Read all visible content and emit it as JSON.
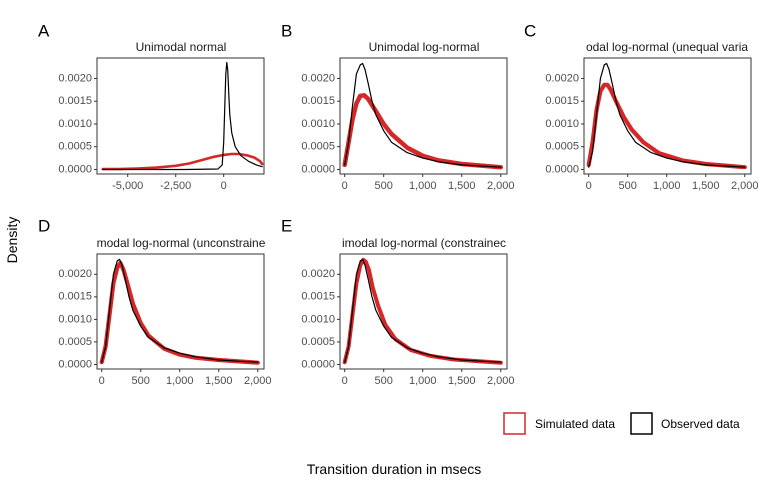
{
  "figure": {
    "y_axis_title": "Density",
    "x_axis_title": "Transition duration in msecs"
  },
  "legend": {
    "items": [
      {
        "label": "Simulated data",
        "color": "#d62728"
      },
      {
        "label": "Observed data",
        "color": "#000000"
      }
    ]
  },
  "chart_data": [
    {
      "type": "line",
      "panel": "A",
      "title": "Unimodal normal",
      "xlim": [
        -6600,
        2100
      ],
      "ylim": [
        -0.0001,
        0.00245
      ],
      "x_ticks": [
        -5000,
        -2500,
        0
      ],
      "x_tick_labels": [
        "-5,000",
        "-2,500",
        "0"
      ],
      "y_ticks": [
        0,
        0.0005,
        0.001,
        0.0015,
        0.002
      ],
      "y_tick_labels": [
        "0.0000",
        "0.0005",
        "0.0010",
        "0.0015",
        "0.0020"
      ],
      "series": [
        {
          "name": "Simulated data",
          "color": "#d62728",
          "width": 2.6,
          "x": [
            -6300,
            -5500,
            -4500,
            -3500,
            -2500,
            -1800,
            -1200,
            -600,
            0,
            400,
            800,
            1200,
            1600,
            1900,
            2000
          ],
          "y": [
            1e-05,
            1e-05,
            2e-05,
            4e-05,
            8e-05,
            0.00013,
            0.0002,
            0.00027,
            0.00032,
            0.00034,
            0.00034,
            0.00031,
            0.00026,
            0.00018,
            0.00012
          ]
        },
        {
          "name": "Observed data",
          "color": "#000000",
          "width": 1.2,
          "x": [
            -6300,
            -2000,
            -300,
            -80,
            0,
            60,
            110,
            160,
            210,
            260,
            320,
            420,
            600,
            900,
            1300,
            1700,
            2000
          ],
          "y": [
            0,
            0,
            1e-05,
            0.0001,
            0.0006,
            0.0014,
            0.0021,
            0.00235,
            0.0022,
            0.0017,
            0.0012,
            0.0008,
            0.0005,
            0.0003,
            0.00018,
            0.0001,
            6e-05
          ]
        }
      ]
    },
    {
      "type": "line",
      "panel": "B",
      "title": "Unimodal log-normal",
      "xlim": [
        -60,
        2080
      ],
      "ylim": [
        -0.0001,
        0.00245
      ],
      "x_ticks": [
        0,
        500,
        1000,
        1500,
        2000
      ],
      "x_tick_labels": [
        "0",
        "500",
        "1,000",
        "1,500",
        "2,000"
      ],
      "y_ticks": [
        0,
        0.0005,
        0.001,
        0.0015,
        0.002
      ],
      "y_tick_labels": [
        "0.0000",
        "0.0005",
        "0.0010",
        "0.0015",
        "0.0020"
      ],
      "series": [
        {
          "name": "Simulated data",
          "color": "#d62728",
          "width": 4.5,
          "x": [
            0,
            50,
            100,
            150,
            200,
            250,
            300,
            400,
            500,
            600,
            800,
            1000,
            1200,
            1500,
            2000
          ],
          "y": [
            0.0001,
            0.0006,
            0.0011,
            0.00145,
            0.00162,
            0.00163,
            0.00155,
            0.00128,
            0.001,
            0.00078,
            0.00048,
            0.0003,
            0.0002,
            0.00012,
            5e-05
          ]
        },
        {
          "name": "Observed data",
          "color": "#000000",
          "width": 1.2,
          "x": [
            0,
            50,
            100,
            150,
            200,
            230,
            260,
            300,
            350,
            400,
            500,
            600,
            800,
            1000,
            1200,
            1500,
            2000
          ],
          "y": [
            0.0001,
            0.0006,
            0.0014,
            0.0021,
            0.0023,
            0.00233,
            0.0022,
            0.0019,
            0.0015,
            0.0012,
            0.00085,
            0.0006,
            0.00037,
            0.00025,
            0.00017,
            0.0001,
            5e-05
          ]
        }
      ]
    },
    {
      "type": "line",
      "panel": "C",
      "title": "odal log-normal (unequal varia",
      "xlim": [
        -60,
        2080
      ],
      "ylim": [
        -0.0001,
        0.00245
      ],
      "x_ticks": [
        0,
        500,
        1000,
        1500,
        2000
      ],
      "x_tick_labels": [
        "0",
        "500",
        "1,000",
        "1,500",
        "2,000"
      ],
      "y_ticks": [
        0,
        0.0005,
        0.001,
        0.0015,
        0.002
      ],
      "y_tick_labels": [
        "0.0000",
        "0.0005",
        "0.0010",
        "0.0015",
        "0.0020"
      ],
      "series": [
        {
          "name": "Simulated data",
          "color": "#d62728",
          "width": 4.2,
          "x": [
            0,
            50,
            100,
            150,
            200,
            240,
            280,
            350,
            450,
            550,
            700,
            900,
            1200,
            1500,
            2000
          ],
          "y": [
            0.0001,
            0.0006,
            0.0013,
            0.00172,
            0.00186,
            0.00186,
            0.00176,
            0.0015,
            0.00115,
            0.00088,
            0.0006,
            0.00036,
            0.0002,
            0.00012,
            5e-05
          ]
        },
        {
          "name": "Observed data",
          "color": "#000000",
          "width": 1.2,
          "x": [
            0,
            50,
            100,
            150,
            200,
            230,
            260,
            300,
            350,
            400,
            500,
            600,
            800,
            1000,
            1200,
            1500,
            2000
          ],
          "y": [
            5e-05,
            0.0004,
            0.0012,
            0.002,
            0.0023,
            0.00233,
            0.0022,
            0.0019,
            0.0015,
            0.0012,
            0.00085,
            0.0006,
            0.00037,
            0.00025,
            0.00017,
            0.0001,
            5e-05
          ]
        }
      ]
    },
    {
      "type": "line",
      "panel": "D",
      "title": "modal log-normal (unconstraine",
      "xlim": [
        -60,
        2080
      ],
      "ylim": [
        -0.0001,
        0.00245
      ],
      "x_ticks": [
        0,
        500,
        1000,
        1500,
        2000
      ],
      "x_tick_labels": [
        "0",
        "500",
        "1,000",
        "1,500",
        "2,000"
      ],
      "y_ticks": [
        0,
        0.0005,
        0.001,
        0.0015,
        0.002
      ],
      "y_tick_labels": [
        "0.0000",
        "0.0005",
        "0.0010",
        "0.0015",
        "0.0020"
      ],
      "series": [
        {
          "name": "Simulated data",
          "color": "#d62728",
          "width": 4.2,
          "x": [
            0,
            50,
            100,
            150,
            200,
            240,
            280,
            330,
            400,
            500,
            600,
            800,
            1000,
            1200,
            1500,
            2000
          ],
          "y": [
            5e-05,
            0.0004,
            0.0011,
            0.0018,
            0.00215,
            0.00225,
            0.0021,
            0.0018,
            0.00135,
            0.00092,
            0.00064,
            0.00035,
            0.00022,
            0.00015,
            0.0001,
            4e-05
          ]
        },
        {
          "name": "Observed data",
          "color": "#000000",
          "width": 1.2,
          "x": [
            0,
            50,
            100,
            150,
            200,
            230,
            260,
            300,
            350,
            400,
            500,
            600,
            800,
            1000,
            1200,
            1500,
            2000
          ],
          "y": [
            5e-05,
            0.0004,
            0.0012,
            0.002,
            0.0023,
            0.00233,
            0.0022,
            0.0019,
            0.0015,
            0.0012,
            0.00085,
            0.0006,
            0.00037,
            0.00025,
            0.00017,
            0.0001,
            5e-05
          ]
        }
      ]
    },
    {
      "type": "line",
      "panel": "E",
      "title": "imodal log-normal (constrainec",
      "xlim": [
        -60,
        2080
      ],
      "ylim": [
        -0.0001,
        0.00245
      ],
      "x_ticks": [
        0,
        500,
        1000,
        1500,
        2000
      ],
      "x_tick_labels": [
        "0",
        "500",
        "1,000",
        "1,500",
        "2,000"
      ],
      "y_ticks": [
        0,
        0.0005,
        0.001,
        0.0015,
        0.002
      ],
      "y_tick_labels": [
        "0.0000",
        "0.0005",
        "0.0010",
        "0.0015",
        "0.0020"
      ],
      "series": [
        {
          "name": "Simulated data",
          "color": "#d62728",
          "width": 4.0,
          "x": [
            0,
            50,
            100,
            150,
            200,
            240,
            270,
            310,
            360,
            430,
            520,
            650,
            850,
            1100,
            1400,
            2000
          ],
          "y": [
            5e-05,
            0.0004,
            0.0011,
            0.0018,
            0.0022,
            0.00232,
            0.00228,
            0.0021,
            0.0017,
            0.0013,
            0.00088,
            0.00056,
            0.00032,
            0.00019,
            0.00011,
            4e-05
          ]
        },
        {
          "name": "Observed data",
          "color": "#000000",
          "width": 1.2,
          "x": [
            0,
            50,
            100,
            150,
            200,
            230,
            260,
            300,
            350,
            400,
            500,
            600,
            800,
            1000,
            1200,
            1500,
            2000
          ],
          "y": [
            5e-05,
            0.0004,
            0.0012,
            0.002,
            0.0023,
            0.00233,
            0.0022,
            0.0019,
            0.0015,
            0.0012,
            0.00085,
            0.0006,
            0.00037,
            0.00025,
            0.00017,
            0.0001,
            5e-05
          ]
        }
      ]
    }
  ]
}
